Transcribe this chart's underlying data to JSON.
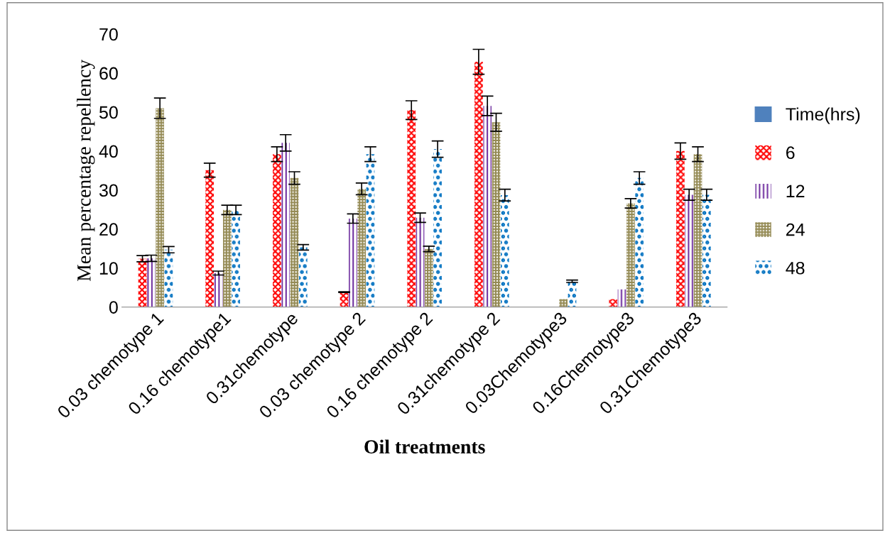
{
  "chart_data": {
    "type": "bar",
    "xlabel": "Oil treatments",
    "ylabel": "Mean percentage repellency",
    "categories": [
      "0.03 chemotype 1",
      "0.16 chemotype1",
      "0.31chemotype",
      "0.03 chemotype 2",
      "0.16 chemotype 2",
      "0.31chemotype 2",
      "0.03Chemotype3",
      "0.16Chemotype3",
      "0.31Chemotype3"
    ],
    "series": [
      {
        "name": "Time(hrs)",
        "color": "#4f81bd",
        "values": [
          null,
          null,
          null,
          null,
          null,
          null,
          null,
          null,
          null
        ]
      },
      {
        "name": "6",
        "color": "#ff0000",
        "values": [
          12.4,
          35.1,
          39.2,
          3.8,
          50.5,
          62.9,
          0,
          2.0,
          40.0
        ],
        "errors": [
          0.8,
          1.8,
          1.9,
          0.1,
          2.4,
          3.2,
          null,
          null,
          2.1
        ]
      },
      {
        "name": "12",
        "color": "#7030a0",
        "values": [
          12.5,
          8.7,
          42.1,
          22.7,
          22.9,
          51.6,
          0,
          4.5,
          28.8
        ],
        "errors": [
          0.8,
          0.5,
          2.1,
          1.2,
          1.2,
          2.5,
          null,
          null,
          1.4
        ]
      },
      {
        "name": "24",
        "color": "#948a54",
        "values": [
          51.0,
          24.9,
          33.1,
          30.3,
          14.9,
          47.4,
          2.0,
          26.6,
          39.2
        ],
        "errors": [
          2.6,
          1.2,
          1.6,
          1.5,
          0.7,
          2.3,
          null,
          1.2,
          1.9
        ]
      },
      {
        "name": "48",
        "color": "#0070c0",
        "values": [
          14.7,
          24.9,
          15.3,
          39.2,
          40.5,
          28.7,
          6.6,
          33.1,
          28.8
        ],
        "errors": [
          0.8,
          1.2,
          0.7,
          1.9,
          2.1,
          1.5,
          0.3,
          1.6,
          1.4
        ]
      }
    ],
    "ylim": [
      0,
      70
    ],
    "yticks": [
      0,
      10,
      20,
      30,
      40,
      50,
      60,
      70
    ],
    "grid": false,
    "legend": "right"
  }
}
